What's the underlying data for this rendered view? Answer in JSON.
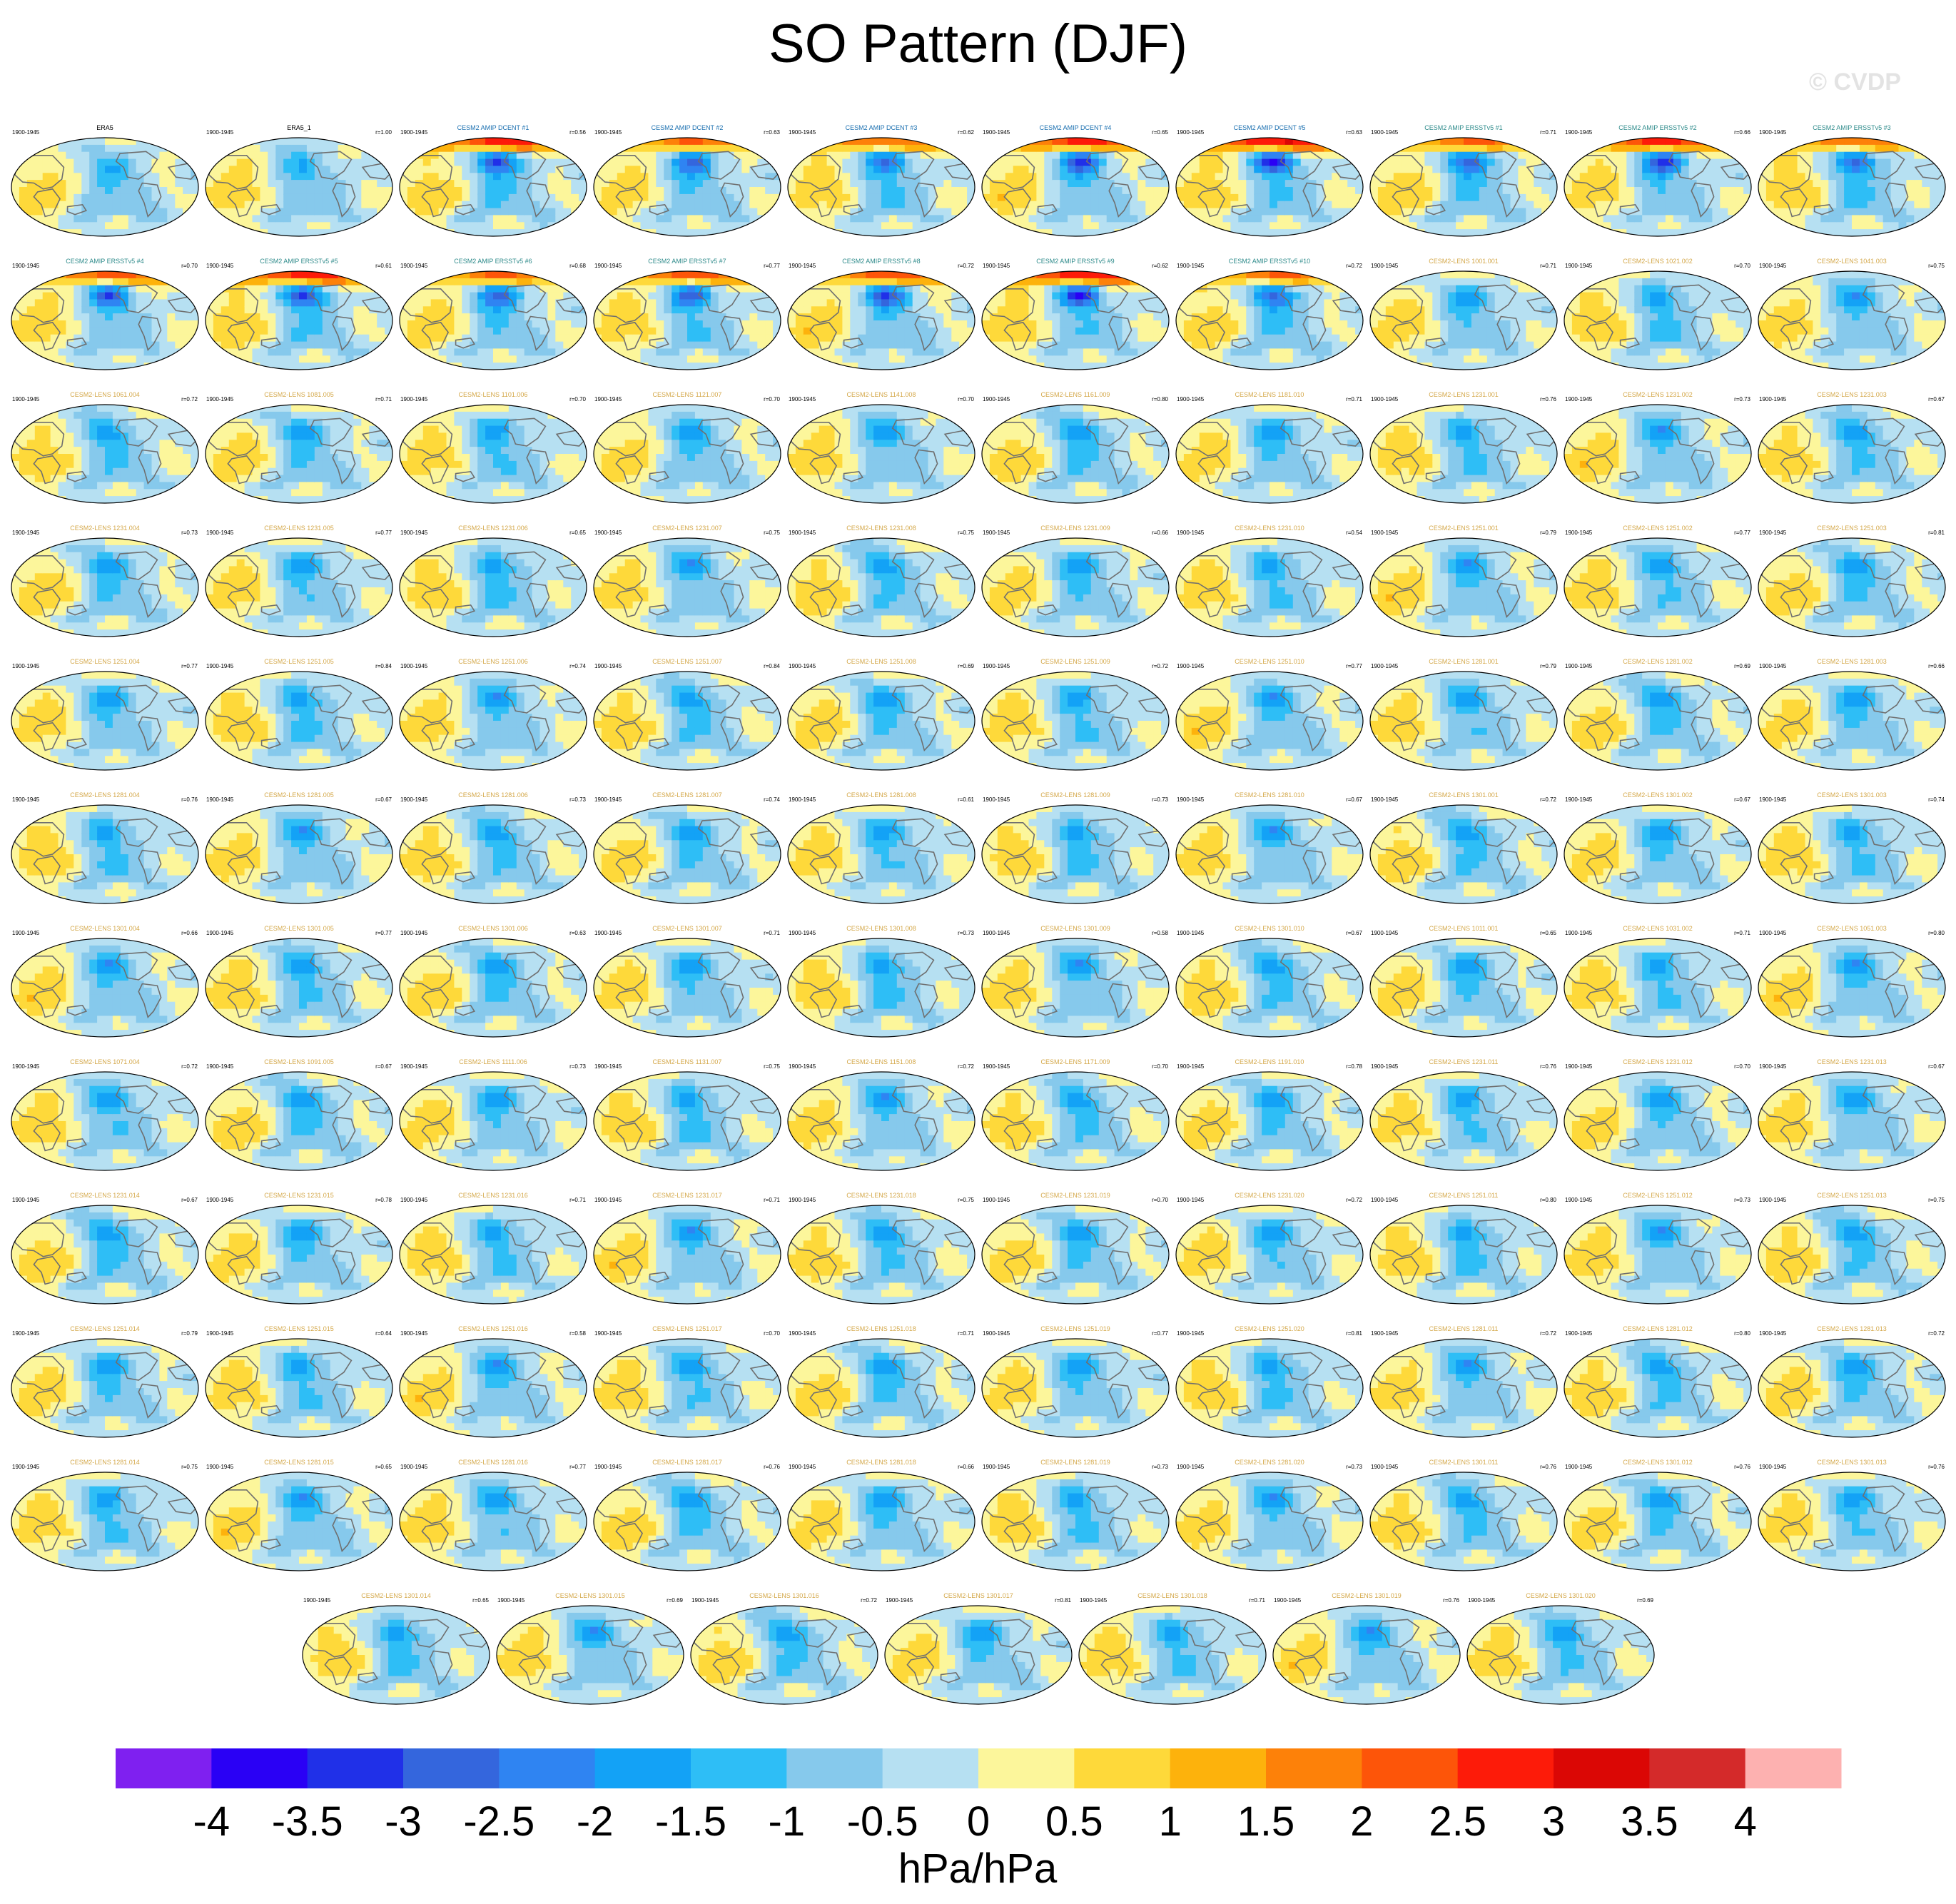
{
  "title": "SO Pattern (DJF)",
  "copyright": "© CVDP",
  "chart_data": {
    "type": "heatmap",
    "title": "SO Pattern (DJF)",
    "period": "1900-1945",
    "panel_grid": {
      "rows": 12,
      "cols": 10,
      "last_row_count": 7
    },
    "panels": [
      {
        "name": "ERA5",
        "r": "",
        "kind": "obs"
      },
      {
        "name": "ERA5_1",
        "r": "r=1.00",
        "kind": "obs"
      },
      {
        "name": "CESM2 AMIP DCENT #1",
        "r": "r=0.56",
        "kind": "dcent",
        "amp": 1.35
      },
      {
        "name": "CESM2 AMIP DCENT #2",
        "r": "r=0.63",
        "kind": "dcent",
        "amp": 1.0
      },
      {
        "name": "CESM2 AMIP DCENT #3",
        "r": "r=0.62",
        "kind": "dcent",
        "amp": 1.05
      },
      {
        "name": "CESM2 AMIP DCENT #4",
        "r": "r=0.65",
        "kind": "dcent",
        "amp": 1.3
      },
      {
        "name": "CESM2 AMIP DCENT #5",
        "r": "r=0.63",
        "kind": "dcent",
        "amp": 1.5
      },
      {
        "name": "CESM2 AMIP ERSSTv5 #1",
        "r": "r=0.71",
        "kind": "ersst",
        "amp": 1.0
      },
      {
        "name": "CESM2 AMIP ERSSTv5 #2",
        "r": "r=0.66",
        "kind": "ersst",
        "amp": 1.35
      },
      {
        "name": "CESM2 AMIP ERSSTv5 #3",
        "r": "",
        "kind": "ersst",
        "amp": 1.0
      },
      {
        "name": "CESM2 AMIP ERSSTv5 #4",
        "r": "r=0.70",
        "kind": "ersst",
        "amp": 1.1
      },
      {
        "name": "CESM2 AMIP ERSSTv5 #5",
        "r": "r=0.61",
        "kind": "ersst",
        "amp": 1.4
      },
      {
        "name": "CESM2 AMIP ERSSTv5 #6",
        "r": "r=0.68",
        "kind": "ersst",
        "amp": 1.05
      },
      {
        "name": "CESM2 AMIP ERSSTv5 #7",
        "r": "r=0.77",
        "kind": "ersst",
        "amp": 1.1
      },
      {
        "name": "CESM2 AMIP ERSSTv5 #8",
        "r": "r=0.72",
        "kind": "ersst",
        "amp": 1.15
      },
      {
        "name": "CESM2 AMIP ERSSTv5 #9",
        "r": "r=0.62",
        "kind": "ersst",
        "amp": 1.45
      },
      {
        "name": "CESM2 AMIP ERSSTv5 #10",
        "r": "r=0.72",
        "kind": "ersst",
        "amp": 1.0
      },
      {
        "name": "CESM2-LENS 1001.001",
        "r": "r=0.71",
        "kind": "lens"
      },
      {
        "name": "CESM2-LENS 1021.002",
        "r": "r=0.70",
        "kind": "lens"
      },
      {
        "name": "CESM2-LENS 1041.003",
        "r": "r=0.75",
        "kind": "lens"
      },
      {
        "name": "CESM2-LENS 1061.004",
        "r": "r=0.72",
        "kind": "lens"
      },
      {
        "name": "CESM2-LENS 1081.005",
        "r": "r=0.71",
        "kind": "lens"
      },
      {
        "name": "CESM2-LENS 1101.006",
        "r": "r=0.70",
        "kind": "lens"
      },
      {
        "name": "CESM2-LENS 1121.007",
        "r": "r=0.70",
        "kind": "lens"
      },
      {
        "name": "CESM2-LENS 1141.008",
        "r": "r=0.70",
        "kind": "lens"
      },
      {
        "name": "CESM2-LENS 1161.009",
        "r": "r=0.80",
        "kind": "lens"
      },
      {
        "name": "CESM2-LENS 1181.010",
        "r": "r=0.71",
        "kind": "lens"
      },
      {
        "name": "CESM2-LENS 1231.001",
        "r": "r=0.76",
        "kind": "lens"
      },
      {
        "name": "CESM2-LENS 1231.002",
        "r": "r=0.73",
        "kind": "lens"
      },
      {
        "name": "CESM2-LENS 1231.003",
        "r": "r=0.67",
        "kind": "lens"
      },
      {
        "name": "CESM2-LENS 1231.004",
        "r": "r=0.73",
        "kind": "lens"
      },
      {
        "name": "CESM2-LENS 1231.005",
        "r": "r=0.77",
        "kind": "lens"
      },
      {
        "name": "CESM2-LENS 1231.006",
        "r": "r=0.65",
        "kind": "lens"
      },
      {
        "name": "CESM2-LENS 1231.007",
        "r": "r=0.75",
        "kind": "lens"
      },
      {
        "name": "CESM2-LENS 1231.008",
        "r": "r=0.75",
        "kind": "lens"
      },
      {
        "name": "CESM2-LENS 1231.009",
        "r": "r=0.66",
        "kind": "lens"
      },
      {
        "name": "CESM2-LENS 1231.010",
        "r": "r=0.54",
        "kind": "lens"
      },
      {
        "name": "CESM2-LENS 1251.001",
        "r": "r=0.79",
        "kind": "lens"
      },
      {
        "name": "CESM2-LENS 1251.002",
        "r": "r=0.77",
        "kind": "lens"
      },
      {
        "name": "CESM2-LENS 1251.003",
        "r": "r=0.81",
        "kind": "lens"
      },
      {
        "name": "CESM2-LENS 1251.004",
        "r": "r=0.77",
        "kind": "lens"
      },
      {
        "name": "CESM2-LENS 1251.005",
        "r": "r=0.84",
        "kind": "lens"
      },
      {
        "name": "CESM2-LENS 1251.006",
        "r": "r=0.74",
        "kind": "lens"
      },
      {
        "name": "CESM2-LENS 1251.007",
        "r": "r=0.84",
        "kind": "lens"
      },
      {
        "name": "CESM2-LENS 1251.008",
        "r": "r=0.69",
        "kind": "lens"
      },
      {
        "name": "CESM2-LENS 1251.009",
        "r": "r=0.72",
        "kind": "lens"
      },
      {
        "name": "CESM2-LENS 1251.010",
        "r": "r=0.77",
        "kind": "lens"
      },
      {
        "name": "CESM2-LENS 1281.001",
        "r": "r=0.79",
        "kind": "lens"
      },
      {
        "name": "CESM2-LENS 1281.002",
        "r": "r=0.69",
        "kind": "lens"
      },
      {
        "name": "CESM2-LENS 1281.003",
        "r": "r=0.66",
        "kind": "lens"
      },
      {
        "name": "CESM2-LENS 1281.004",
        "r": "r=0.76",
        "kind": "lens"
      },
      {
        "name": "CESM2-LENS 1281.005",
        "r": "r=0.67",
        "kind": "lens"
      },
      {
        "name": "CESM2-LENS 1281.006",
        "r": "r=0.73",
        "kind": "lens"
      },
      {
        "name": "CESM2-LENS 1281.007",
        "r": "r=0.74",
        "kind": "lens"
      },
      {
        "name": "CESM2-LENS 1281.008",
        "r": "r=0.61",
        "kind": "lens"
      },
      {
        "name": "CESM2-LENS 1281.009",
        "r": "r=0.73",
        "kind": "lens"
      },
      {
        "name": "CESM2-LENS 1281.010",
        "r": "r=0.67",
        "kind": "lens"
      },
      {
        "name": "CESM2-LENS 1301.001",
        "r": "r=0.72",
        "kind": "lens"
      },
      {
        "name": "CESM2-LENS 1301.002",
        "r": "r=0.67",
        "kind": "lens"
      },
      {
        "name": "CESM2-LENS 1301.003",
        "r": "r=0.74",
        "kind": "lens"
      },
      {
        "name": "CESM2-LENS 1301.004",
        "r": "r=0.66",
        "kind": "lens"
      },
      {
        "name": "CESM2-LENS 1301.005",
        "r": "r=0.77",
        "kind": "lens"
      },
      {
        "name": "CESM2-LENS 1301.006",
        "r": "r=0.63",
        "kind": "lens"
      },
      {
        "name": "CESM2-LENS 1301.007",
        "r": "r=0.71",
        "kind": "lens"
      },
      {
        "name": "CESM2-LENS 1301.008",
        "r": "r=0.73",
        "kind": "lens"
      },
      {
        "name": "CESM2-LENS 1301.009",
        "r": "r=0.58",
        "kind": "lens"
      },
      {
        "name": "CESM2-LENS 1301.010",
        "r": "r=0.67",
        "kind": "lens"
      },
      {
        "name": "CESM2-LENS 1011.001",
        "r": "r=0.65",
        "kind": "lens"
      },
      {
        "name": "CESM2-LENS 1031.002",
        "r": "r=0.71",
        "kind": "lens"
      },
      {
        "name": "CESM2-LENS 1051.003",
        "r": "r=0.80",
        "kind": "lens"
      },
      {
        "name": "CESM2-LENS 1071.004",
        "r": "r=0.72",
        "kind": "lens"
      },
      {
        "name": "CESM2-LENS 1091.005",
        "r": "r=0.67",
        "kind": "lens"
      },
      {
        "name": "CESM2-LENS 1111.006",
        "r": "r=0.73",
        "kind": "lens"
      },
      {
        "name": "CESM2-LENS 1131.007",
        "r": "r=0.75",
        "kind": "lens"
      },
      {
        "name": "CESM2-LENS 1151.008",
        "r": "r=0.72",
        "kind": "lens"
      },
      {
        "name": "CESM2-LENS 1171.009",
        "r": "r=0.70",
        "kind": "lens"
      },
      {
        "name": "CESM2-LENS 1191.010",
        "r": "r=0.78",
        "kind": "lens"
      },
      {
        "name": "CESM2-LENS 1231.011",
        "r": "r=0.76",
        "kind": "lens"
      },
      {
        "name": "CESM2-LENS 1231.012",
        "r": "r=0.70",
        "kind": "lens"
      },
      {
        "name": "CESM2-LENS 1231.013",
        "r": "r=0.67",
        "kind": "lens"
      },
      {
        "name": "CESM2-LENS 1231.014",
        "r": "r=0.67",
        "kind": "lens"
      },
      {
        "name": "CESM2-LENS 1231.015",
        "r": "r=0.78",
        "kind": "lens"
      },
      {
        "name": "CESM2-LENS 1231.016",
        "r": "r=0.71",
        "kind": "lens"
      },
      {
        "name": "CESM2-LENS 1231.017",
        "r": "r=0.71",
        "kind": "lens"
      },
      {
        "name": "CESM2-LENS 1231.018",
        "r": "r=0.75",
        "kind": "lens"
      },
      {
        "name": "CESM2-LENS 1231.019",
        "r": "r=0.70",
        "kind": "lens"
      },
      {
        "name": "CESM2-LENS 1231.020",
        "r": "r=0.72",
        "kind": "lens"
      },
      {
        "name": "CESM2-LENS 1251.011",
        "r": "r=0.80",
        "kind": "lens"
      },
      {
        "name": "CESM2-LENS 1251.012",
        "r": "r=0.73",
        "kind": "lens"
      },
      {
        "name": "CESM2-LENS 1251.013",
        "r": "r=0.75",
        "kind": "lens"
      },
      {
        "name": "CESM2-LENS 1251.014",
        "r": "r=0.79",
        "kind": "lens"
      },
      {
        "name": "CESM2-LENS 1251.015",
        "r": "r=0.64",
        "kind": "lens"
      },
      {
        "name": "CESM2-LENS 1251.016",
        "r": "r=0.58",
        "kind": "lens"
      },
      {
        "name": "CESM2-LENS 1251.017",
        "r": "r=0.70",
        "kind": "lens"
      },
      {
        "name": "CESM2-LENS 1251.018",
        "r": "r=0.71",
        "kind": "lens"
      },
      {
        "name": "CESM2-LENS 1251.019",
        "r": "r=0.77",
        "kind": "lens"
      },
      {
        "name": "CESM2-LENS 1251.020",
        "r": "r=0.81",
        "kind": "lens"
      },
      {
        "name": "CESM2-LENS 1281.011",
        "r": "r=0.72",
        "kind": "lens"
      },
      {
        "name": "CESM2-LENS 1281.012",
        "r": "r=0.80",
        "kind": "lens"
      },
      {
        "name": "CESM2-LENS 1281.013",
        "r": "r=0.72",
        "kind": "lens"
      },
      {
        "name": "CESM2-LENS 1281.014",
        "r": "r=0.75",
        "kind": "lens"
      },
      {
        "name": "CESM2-LENS 1281.015",
        "r": "r=0.65",
        "kind": "lens"
      },
      {
        "name": "CESM2-LENS 1281.016",
        "r": "r=0.77",
        "kind": "lens"
      },
      {
        "name": "CESM2-LENS 1281.017",
        "r": "r=0.76",
        "kind": "lens"
      },
      {
        "name": "CESM2-LENS 1281.018",
        "r": "r=0.66",
        "kind": "lens"
      },
      {
        "name": "CESM2-LENS 1281.019",
        "r": "r=0.73",
        "kind": "lens"
      },
      {
        "name": "CESM2-LENS 1281.020",
        "r": "r=0.73",
        "kind": "lens"
      },
      {
        "name": "CESM2-LENS 1301.011",
        "r": "r=0.76",
        "kind": "lens"
      },
      {
        "name": "CESM2-LENS 1301.012",
        "r": "r=0.76",
        "kind": "lens"
      },
      {
        "name": "CESM2-LENS 1301.013",
        "r": "r=0.76",
        "kind": "lens"
      },
      {
        "name": "CESM2-LENS 1301.014",
        "r": "r=0.65",
        "kind": "lens"
      },
      {
        "name": "CESM2-LENS 1301.015",
        "r": "r=0.69",
        "kind": "lens"
      },
      {
        "name": "CESM2-LENS 1301.016",
        "r": "r=0.72",
        "kind": "lens"
      },
      {
        "name": "CESM2-LENS 1301.017",
        "r": "r=0.81",
        "kind": "lens"
      },
      {
        "name": "CESM2-LENS 1301.018",
        "r": "r=0.71",
        "kind": "lens"
      },
      {
        "name": "CESM2-LENS 1301.019",
        "r": "r=0.76",
        "kind": "lens"
      },
      {
        "name": "CESM2-LENS 1301.020",
        "r": "r=0.69",
        "kind": "lens"
      }
    ],
    "label_colors": {
      "obs": "#000000",
      "dcent": "#1a6fb0",
      "ersst": "#2e8b8b",
      "lens": "#d4a84a"
    },
    "colorbar": {
      "levels": [
        -4,
        -3.5,
        -3,
        -2.5,
        -2,
        -1.5,
        -1,
        -0.5,
        0,
        0.5,
        1,
        1.5,
        2,
        2.5,
        3,
        3.5,
        4
      ],
      "tick_labels": [
        "-4",
        "-3.5",
        "-3",
        "-2.5",
        "-2",
        "-1.5",
        "-1",
        "-0.5",
        "0",
        "0.5",
        "1",
        "1.5",
        "2",
        "2.5",
        "3",
        "3.5",
        "4"
      ],
      "colors": [
        "#7f20f0",
        "#2a00f5",
        "#2030e8",
        "#3466dd",
        "#2f84f2",
        "#13a2f6",
        "#2ebef6",
        "#86c9ec",
        "#b6e0f2",
        "#fcf69b",
        "#fed93a",
        "#fdb20c",
        "#fd8109",
        "#fd5509",
        "#fd1b09",
        "#db0705",
        "#d42a2a",
        "#fdb1b0"
      ],
      "units": "hPa/hPa"
    }
  }
}
